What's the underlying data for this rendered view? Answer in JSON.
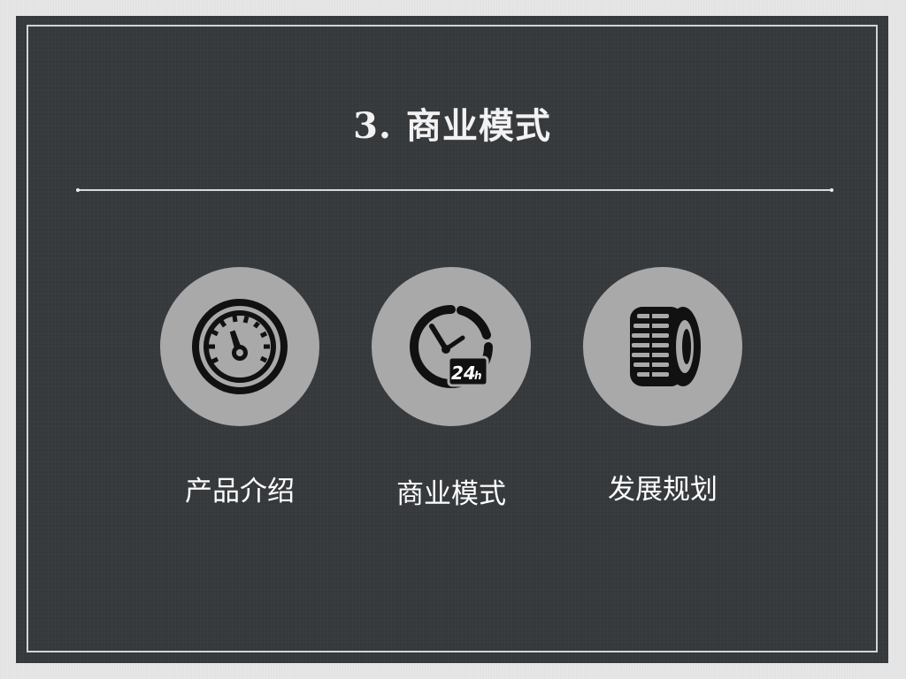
{
  "slide": {
    "title_number": "3.",
    "title_text": "商业模式"
  },
  "items": [
    {
      "label": "产品介绍",
      "icon": "speedometer-icon"
    },
    {
      "label": "商业模式",
      "icon": "clock-24h-icon"
    },
    {
      "label": "发展规划",
      "icon": "tire-icon"
    }
  ],
  "colors": {
    "board": "#373a3d",
    "circle": "#a9a9aa",
    "icon": "#111111",
    "text": "#ffffff"
  }
}
